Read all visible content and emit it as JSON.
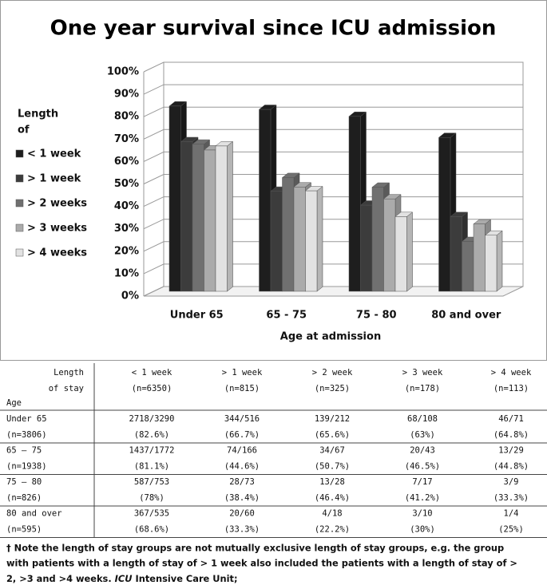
{
  "chart_data": {
    "type": "bar",
    "title": "One year survival since ICU admission",
    "xlabel": "Age at admission",
    "legend_title": [
      "Length",
      "of"
    ],
    "categories": [
      "Under 65",
      "65 - 75",
      "75 - 80",
      "80 and over"
    ],
    "series": [
      {
        "name": "< 1 week",
        "color": "#1e1e1e",
        "values": [
          82.6,
          81.1,
          78,
          68.6
        ]
      },
      {
        "name": "> 1 week",
        "color": "#3c3c3c",
        "values": [
          66.7,
          44.6,
          38.4,
          33.3
        ]
      },
      {
        "name": "> 2 weeks",
        "color": "#707070",
        "values": [
          65.6,
          50.7,
          46.4,
          22.2
        ]
      },
      {
        "name": "> 3 weeks",
        "color": "#ababab",
        "values": [
          63,
          46.5,
          41.2,
          30
        ]
      },
      {
        "name": "> 4 weeks",
        "color": "#e2e2e2",
        "values": [
          64.8,
          44.8,
          33.3,
          25
        ]
      }
    ],
    "ylim": [
      0,
      100
    ],
    "yticks": [
      {
        "value": 0,
        "label": "0%"
      },
      {
        "value": 10,
        "label": "10%"
      },
      {
        "value": 20,
        "label": "20%"
      },
      {
        "value": 30,
        "label": "30%"
      },
      {
        "value": 40,
        "label": "40%"
      },
      {
        "value": 50,
        "label": "50%"
      },
      {
        "value": 60,
        "label": "60%"
      },
      {
        "value": 70,
        "label": "70%"
      },
      {
        "value": 80,
        "label": "80%"
      },
      {
        "value": 90,
        "label": "90%"
      },
      {
        "value": 100,
        "label": "100%"
      }
    ],
    "grid": true,
    "legend": "left"
  },
  "table": {
    "corner": [
      "Length",
      "of stay",
      "Age"
    ],
    "columns": [
      {
        "name": "< 1 week",
        "n": "(n=6350)"
      },
      {
        "name": "> 1 week",
        "n": "(n=815)"
      },
      {
        "name": "> 2 week",
        "n": "(n=325)"
      },
      {
        "name": "> 3 week",
        "n": "(n=178)"
      },
      {
        "name": "> 4 week",
        "n": "(n=113)"
      }
    ],
    "rows": [
      {
        "age": "Under 65",
        "n": "(n=3806)",
        "cells": [
          [
            "2718/3290",
            "(82.6%)"
          ],
          [
            "344/516",
            "(66.7%)"
          ],
          [
            "139/212",
            "(65.6%)"
          ],
          [
            "68/108",
            "(63%)"
          ],
          [
            "46/71",
            "(64.8%)"
          ]
        ]
      },
      {
        "age": "65 – 75",
        "n": "(n=1938)",
        "cells": [
          [
            "1437/1772",
            "(81.1%)"
          ],
          [
            "74/166",
            "(44.6%)"
          ],
          [
            "34/67",
            "(50.7%)"
          ],
          [
            "20/43",
            "(46.5%)"
          ],
          [
            "13/29",
            "(44.8%)"
          ]
        ]
      },
      {
        "age": "75 – 80",
        "n": "(n=826)",
        "cells": [
          [
            "587/753",
            "(78%)"
          ],
          [
            "28/73",
            "(38.4%)"
          ],
          [
            "13/28",
            "(46.4%)"
          ],
          [
            "7/17",
            "(41.2%)"
          ],
          [
            "3/9",
            "(33.3%)"
          ]
        ]
      },
      {
        "age": "80 and over",
        "n": "(n=595)",
        "cells": [
          [
            "367/535",
            "(68.6%)"
          ],
          [
            "20/60",
            "(33.3%)"
          ],
          [
            "4/18",
            "(22.2%)"
          ],
          [
            "3/10",
            "(30%)"
          ],
          [
            "1/4",
            "(25%)"
          ]
        ]
      }
    ]
  },
  "footnote": {
    "lines": [
      "† Note the length of stay groups are not mutually exclusive length of stay groups, e.g. the group",
      "with patients with a length of stay of > 1 week also included the patients with a length of stay of >"
    ],
    "last": "2, >3 and >4  weeks.",
    "abbr": "ICU",
    "definition": "Intensive Care Unit;"
  }
}
